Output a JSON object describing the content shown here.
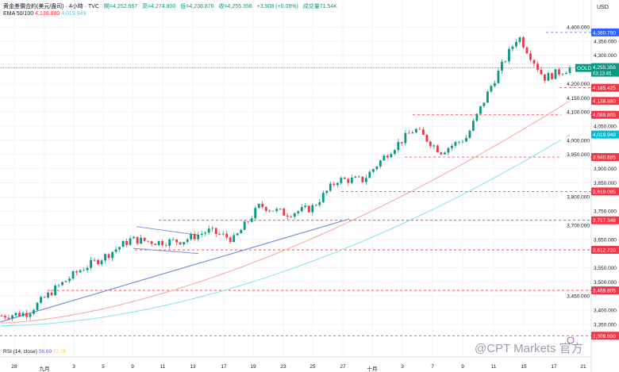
{
  "header": {
    "symbol": "黄金差價合約(美元/盎司) · 4小時 · TVC",
    "open": "開=4,252.667",
    "high": "高=4,274.800",
    "low": "低=4,238.876",
    "close": "收=4,255.356",
    "change": "+3.908 (+0.09%)",
    "volume": "成交量71.54K"
  },
  "ema": {
    "label": "EMA 50/100",
    "ema50": "4,138.880",
    "ema100": "4,019.949"
  },
  "rsi": {
    "label": "RSI (14, close)",
    "v1": "56.69",
    "v2": "72.28"
  },
  "currency": "USD",
  "watermark": "@CPT Markets 官方",
  "colors": {
    "up": "#089981",
    "down": "#f23645",
    "ema50": "#f7a59a",
    "ema100": "#7fe3ef",
    "trend": "#7b8fe0",
    "level": "#f23645",
    "price": "#089981"
  },
  "chart_data": {
    "type": "candlestick",
    "y_ticks": [
      4400,
      4350,
      4300,
      4200,
      4150,
      4100,
      4050,
      4000,
      3950,
      3900,
      3850,
      3800,
      3750,
      3700,
      3650,
      3550,
      3500,
      3450,
      3400,
      3350
    ],
    "x_ticks": [
      "28",
      "九月",
      "3",
      "5",
      "9",
      "11",
      "13",
      "17",
      "19",
      "23",
      "25",
      "27",
      "十月",
      "3",
      "7",
      "9",
      "11",
      "15",
      "17",
      "21"
    ],
    "close_path": [
      3380,
      3390,
      3470,
      3540,
      3590,
      3650,
      3640,
      3645,
      3680,
      3650,
      3770,
      3740,
      3760,
      3860,
      3860,
      3960,
      4040,
      3960,
      4010,
      4200,
      4370,
      4220,
      4255
    ],
    "ema50_range": [
      3355,
      4138.88
    ],
    "ema100_range": [
      3345,
      4019.949
    ],
    "current_price": {
      "symbol": "GOLD",
      "value": "4,255.356",
      "countdown": "03:13:45"
    },
    "high_level": "4,380.790",
    "levels": [
      "4,185.425",
      "4,089.805",
      "3,940.685",
      "3,819.095",
      "3,717.348",
      "3,612.720",
      "3,469.805",
      "3,309.600"
    ],
    "ema_labels": [
      "4,138.880",
      "4,019.949"
    ]
  }
}
